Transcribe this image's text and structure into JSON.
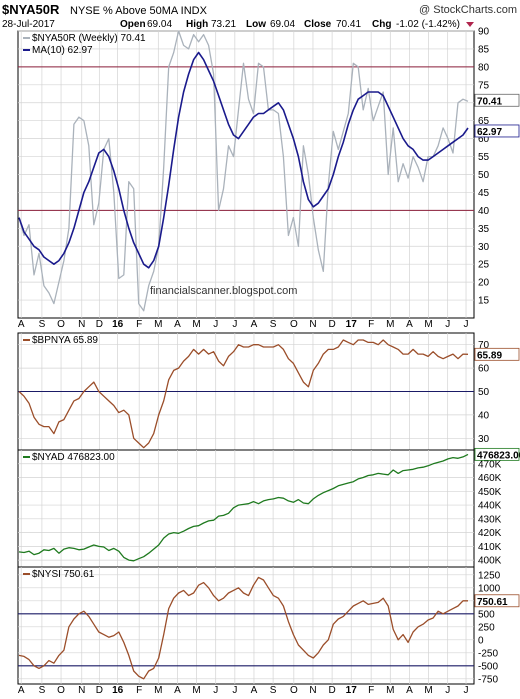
{
  "header": {
    "symbol": "$NYA50R",
    "description": "NYSE % Above 50MA  INDX",
    "brand": "@ StockCharts.com",
    "date": "28-Jul-2017",
    "open_label": "Open",
    "open": "69.04",
    "high_label": "High",
    "high": "73.21",
    "low_label": "Low",
    "low": "69.04",
    "close_label": "Close",
    "close": "70.41",
    "chg_label": "Chg",
    "chg": "-1.02 (-1.42%)"
  },
  "watermark": "financialscanner.blogspot.com",
  "colors": {
    "grid": "#d3d3d3",
    "gray_series": "#aab2bb",
    "ma_series": "#1a1a8c",
    "brown_series": "#9b4e2a",
    "green_series": "#1f7a1f",
    "ref_line_panel1": "#8b1f3a",
    "ref_line_panel2_4": "#1a1a66",
    "down_red": "#b0254d"
  },
  "chart_data": [
    {
      "type": "line",
      "name": "$NYA50R",
      "legend": [
        {
          "label": "$NYA50R (Weekly) 70.41",
          "color": "#aab2bb"
        },
        {
          "label": "MA(10) 62.97",
          "color": "#1a1a8c"
        }
      ],
      "ylim": [
        10,
        90
      ],
      "yticks": [
        15,
        20,
        25,
        30,
        35,
        40,
        45,
        50,
        55,
        60,
        65,
        70,
        75,
        80,
        85,
        90
      ],
      "reference_lines": [
        40,
        80
      ],
      "last_labels": [
        "70.41",
        "62.97"
      ],
      "series": [
        {
          "name": "$NYA50R (Weekly)",
          "values": [
            38,
            33,
            36,
            22,
            28,
            19,
            17,
            14,
            20,
            26,
            35,
            64,
            66,
            65,
            58,
            36,
            42,
            57,
            60,
            45,
            21,
            22,
            48,
            46,
            14,
            12,
            19,
            23,
            30,
            52,
            80,
            84,
            90,
            86,
            85,
            89,
            87,
            89,
            86,
            78,
            40,
            46,
            58,
            55,
            68,
            81,
            71,
            67,
            81,
            80,
            68,
            68,
            67,
            55,
            33,
            38,
            30,
            58,
            50,
            38,
            29,
            23,
            47,
            62,
            57,
            62,
            67,
            81,
            80,
            68,
            74,
            65,
            69,
            73,
            50,
            63,
            48,
            53,
            49,
            55,
            52,
            48,
            55,
            55,
            58,
            63,
            60,
            56,
            70,
            71,
            70.41
          ]
        },
        {
          "name": "MA(10)",
          "values": [
            38,
            34,
            32,
            30,
            29,
            27,
            26,
            25,
            26,
            28,
            31,
            35,
            40,
            45,
            48,
            52,
            56,
            57,
            55,
            51,
            46,
            40,
            35,
            31,
            28,
            25,
            24,
            26,
            30,
            38,
            47,
            57,
            66,
            73,
            78,
            82,
            84,
            82,
            79,
            76,
            72,
            68,
            64,
            61,
            60,
            62,
            64,
            66,
            67,
            67,
            68,
            69,
            70,
            68,
            64,
            60,
            55,
            48,
            43,
            41,
            42,
            44,
            46,
            50,
            55,
            59,
            64,
            68,
            71,
            72,
            73,
            73,
            73,
            72,
            69,
            66,
            63,
            60,
            58,
            57,
            55,
            54,
            54,
            55,
            56,
            57,
            58,
            59,
            60,
            61,
            62.97
          ]
        }
      ]
    },
    {
      "type": "line",
      "name": "$BPNYA",
      "legend": [
        {
          "label": "$BPNYA 65.89",
          "color": "#9b4e2a"
        }
      ],
      "ylim": [
        25,
        75
      ],
      "yticks": [
        30,
        40,
        50,
        60,
        70
      ],
      "reference_lines": [
        50
      ],
      "last_labels": [
        "65.89"
      ],
      "series": [
        {
          "name": "$BPNYA",
          "values": [
            50,
            48,
            45,
            39,
            36,
            35,
            35,
            32,
            37,
            38,
            42,
            46,
            47,
            50,
            52,
            54,
            50,
            48,
            46,
            44,
            41,
            42,
            40,
            30,
            28,
            26,
            28,
            32,
            40,
            46,
            55,
            59,
            60,
            63,
            65,
            68,
            66,
            68,
            66,
            67,
            63,
            61,
            65,
            67,
            70,
            69,
            69,
            70,
            70,
            69,
            69,
            69,
            70,
            68,
            64,
            62,
            58,
            54,
            52,
            59,
            62,
            66,
            68,
            68,
            69,
            72,
            71,
            70,
            72,
            72,
            71,
            71,
            70,
            72,
            70,
            69,
            68,
            66,
            66,
            68,
            66,
            66,
            65,
            67,
            65,
            64,
            65,
            66,
            64,
            66,
            65.89
          ]
        }
      ]
    },
    {
      "type": "line",
      "name": "$NYAD",
      "legend": [
        {
          "label": "$NYAD 476823.00",
          "color": "#1f7a1f"
        }
      ],
      "ylim": [
        395000,
        480000
      ],
      "yticks": [
        400000,
        410000,
        420000,
        430000,
        440000,
        450000,
        460000,
        470000
      ],
      "tick_labels": [
        "400K",
        "410K",
        "420K",
        "430K",
        "440K",
        "450K",
        "460K",
        "470K"
      ],
      "last_labels": [
        "476823.00"
      ],
      "series": [
        {
          "name": "$NYAD",
          "values": [
            406000,
            405500,
            406500,
            404000,
            405000,
            407500,
            407000,
            408500,
            405000,
            408000,
            409000,
            408500,
            407500,
            408000,
            409500,
            411000,
            410000,
            409500,
            407000,
            408500,
            406500,
            402000,
            400000,
            399500,
            401000,
            402500,
            405000,
            408000,
            411000,
            416000,
            419000,
            420000,
            419500,
            421000,
            423000,
            424500,
            425000,
            427000,
            428500,
            429000,
            432000,
            432500,
            434000,
            438000,
            440000,
            440500,
            441000,
            442500,
            441000,
            443000,
            444000,
            444500,
            445500,
            445000,
            443000,
            442000,
            444000,
            441500,
            441000,
            444500,
            447000,
            449000,
            450500,
            452000,
            454000,
            455000,
            456000,
            457000,
            459000,
            460000,
            461500,
            462000,
            463000,
            462500,
            462000,
            465500,
            463000,
            465000,
            465500,
            466000,
            467000,
            467500,
            468500,
            470000,
            471000,
            472000,
            473500,
            474500,
            474000,
            475000,
            476823
          ]
        }
      ]
    },
    {
      "type": "line",
      "name": "$NYSI",
      "legend": [
        {
          "label": "$NYSI 750.61",
          "color": "#9b4e2a"
        }
      ],
      "ylim": [
        -850,
        1400
      ],
      "yticks": [
        -750,
        -500,
        -250,
        0,
        250,
        500,
        750,
        1000,
        1250
      ],
      "reference_lines": [
        500,
        -500
      ],
      "last_labels": [
        "750.61"
      ],
      "series": [
        {
          "name": "$NYSI",
          "values": [
            -300,
            -320,
            -380,
            -500,
            -550,
            -500,
            -400,
            -450,
            -300,
            -200,
            250,
            400,
            500,
            550,
            450,
            300,
            150,
            100,
            50,
            80,
            150,
            -50,
            -300,
            -600,
            -700,
            -750,
            -600,
            -550,
            -350,
            100,
            600,
            800,
            900,
            950,
            850,
            900,
            1050,
            1100,
            1000,
            850,
            750,
            800,
            900,
            950,
            1000,
            900,
            850,
            1050,
            1200,
            1150,
            1000,
            850,
            800,
            650,
            350,
            100,
            -100,
            -200,
            -300,
            -350,
            -250,
            -100,
            0,
            300,
            400,
            450,
            550,
            650,
            700,
            750,
            680,
            700,
            720,
            800,
            650,
            200,
            0,
            100,
            -50,
            150,
            250,
            300,
            380,
            420,
            550,
            500,
            550,
            600,
            650,
            750,
            750.61
          ]
        }
      ]
    }
  ],
  "x_axis": {
    "labels": [
      "A",
      "S",
      "O",
      "N",
      "D",
      "16",
      "F",
      "M",
      "A",
      "M",
      "J",
      "J",
      "A",
      "S",
      "O",
      "N",
      "D",
      "17",
      "F",
      "M",
      "A",
      "M",
      "J",
      "J"
    ]
  }
}
